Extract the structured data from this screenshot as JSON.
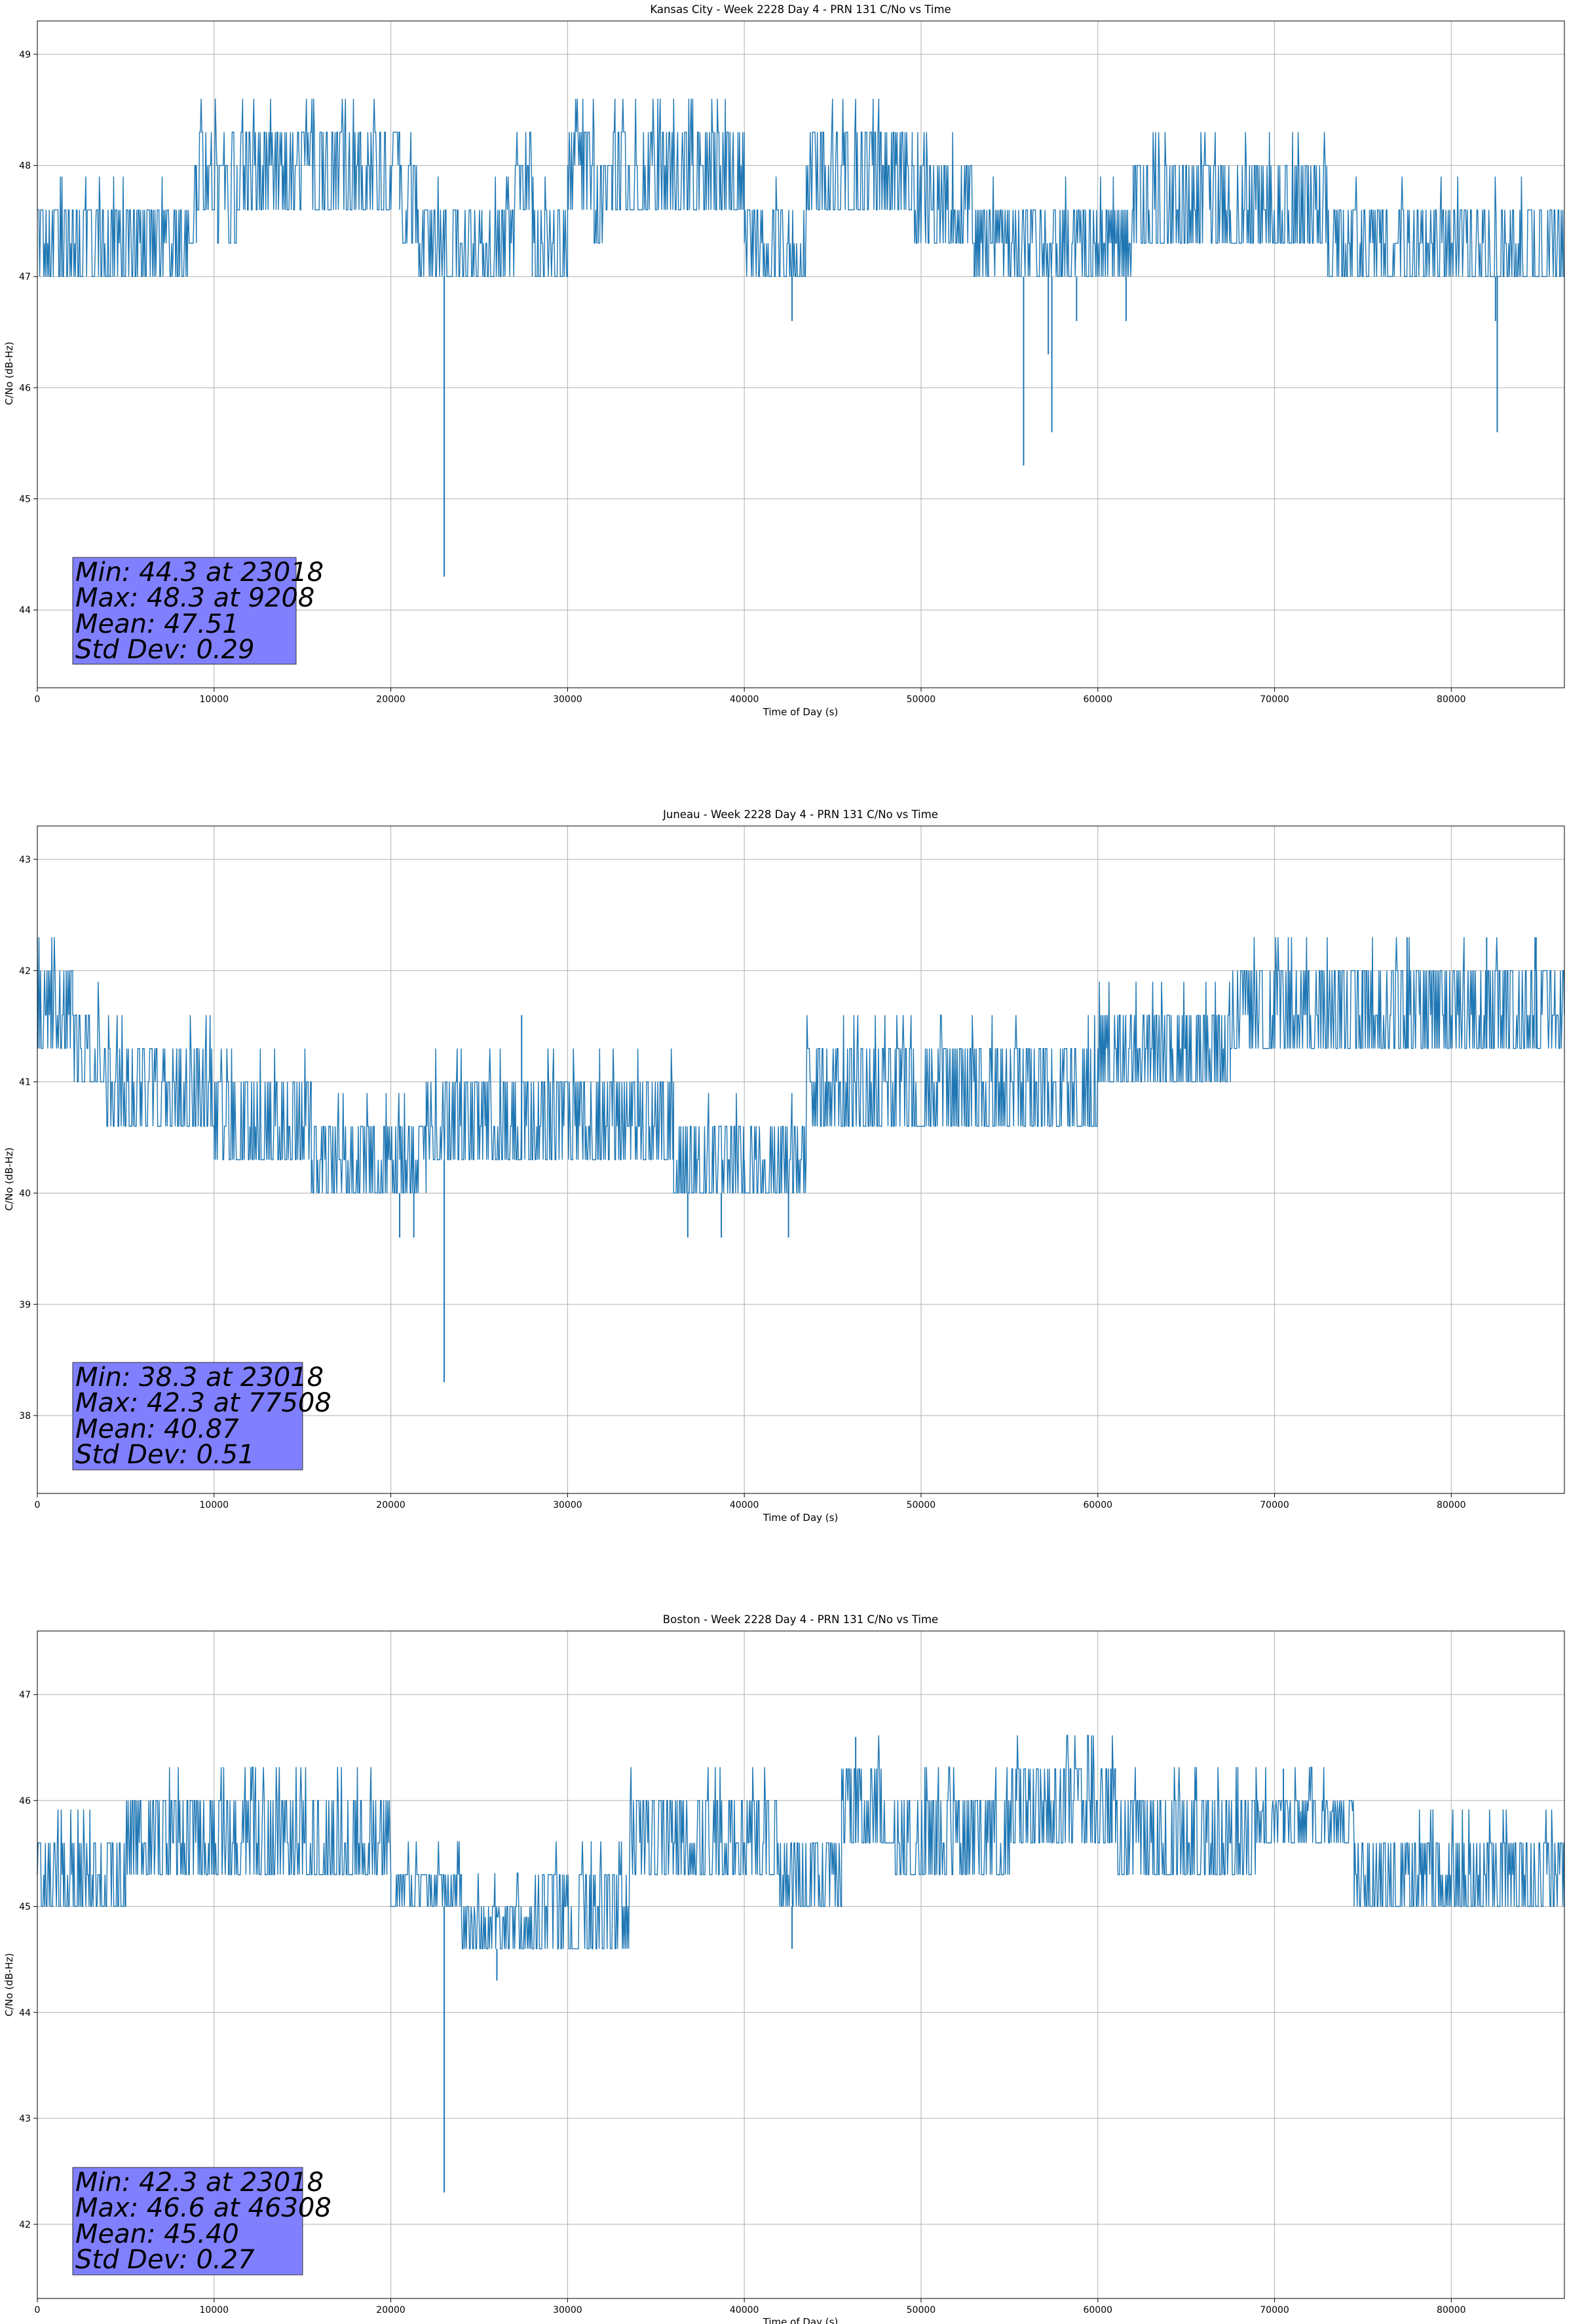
{
  "figure": {
    "background": "#ffffff",
    "line_color": "#1f77b4",
    "grid_color": "#b0b0b0",
    "stats_box_color": "#8080ff"
  },
  "chart_data": [
    {
      "type": "line",
      "title": "Kansas City - Week 2228 Day 4 - PRN 131 C/No vs Time",
      "xlabel": "Time of Day (s)",
      "ylabel": "C/No (dB-Hz)",
      "xlim": [
        0,
        86400
      ],
      "ylim": [
        43.3,
        49.3
      ],
      "xticks": [
        0,
        10000,
        20000,
        30000,
        40000,
        50000,
        60000,
        70000,
        80000
      ],
      "yticks": [
        44,
        45,
        46,
        47,
        48,
        49
      ],
      "grid": true,
      "stats": [
        "Min: 44.3 at 23018",
        "Max: 48.3 at 9208",
        "Mean: 47.51",
        "Std Dev: 0.29"
      ],
      "series": [
        {
          "segments": [
            [
              0,
              8500,
              47.0,
              47.3,
              47.6
            ],
            [
              8500,
              9000,
              47.3,
              47.6,
              48.0
            ],
            [
              9000,
              10200,
              47.6,
              48.0,
              48.3
            ],
            [
              10200,
              11300,
              47.3,
              47.6,
              48.0
            ],
            [
              11300,
              20500,
              47.6,
              48.0,
              48.3
            ],
            [
              20500,
              21500,
              47.3,
              47.6,
              48.0
            ],
            [
              21500,
              27000,
              47.0,
              47.3,
              47.6
            ],
            [
              27000,
              28000,
              47.6,
              48.0,
              48.0
            ],
            [
              28000,
              30000,
              47.0,
              47.3,
              47.6
            ],
            [
              30000,
              31500,
              47.6,
              48.0,
              48.3
            ],
            [
              31500,
              32500,
              47.3,
              47.6,
              48.0
            ],
            [
              32500,
              40000,
              47.6,
              48.0,
              48.3
            ],
            [
              40000,
              43500,
              47.0,
              47.3,
              47.6
            ],
            [
              43500,
              49500,
              47.6,
              48.0,
              48.3
            ],
            [
              49500,
              53000,
              47.3,
              47.6,
              48.0
            ],
            [
              53000,
              58000,
              47.0,
              47.3,
              47.6
            ],
            [
              58000,
              62000,
              47.0,
              47.3,
              47.6
            ],
            [
              62000,
              73000,
              47.3,
              47.6,
              48.0
            ],
            [
              73000,
              76000,
              47.0,
              47.3,
              47.6
            ],
            [
              76000,
              86400,
              47.0,
              47.3,
              47.6
            ]
          ],
          "spikes": [
            [
              23018,
              44.3
            ],
            [
              42700,
              46.6
            ],
            [
              55800,
              45.3
            ],
            [
              57200,
              46.3
            ],
            [
              57400,
              45.6
            ],
            [
              58800,
              46.6
            ],
            [
              61600,
              46.6
            ],
            [
              82500,
              46.6
            ],
            [
              82600,
              45.6
            ]
          ]
        }
      ]
    },
    {
      "type": "line",
      "title": "Juneau - Week 2228 Day 4 - PRN 131 C/No vs Time",
      "xlabel": "Time of Day (s)",
      "ylabel": "C/No (dB-Hz)",
      "xlim": [
        0,
        86400
      ],
      "ylim": [
        37.3,
        43.3
      ],
      "xticks": [
        0,
        10000,
        20000,
        30000,
        40000,
        50000,
        60000,
        70000,
        80000
      ],
      "yticks": [
        38,
        39,
        40,
        41,
        42,
        43
      ],
      "grid": true,
      "stats": [
        "Min: 38.3 at 23018",
        "Max: 42.3 at 77508",
        "Mean: 40.87",
        "Std Dev: 0.51"
      ],
      "series": [
        {
          "segments": [
            [
              0,
              2000,
              41.3,
              41.6,
              42.0
            ],
            [
              2000,
              3800,
              41.0,
              41.3,
              41.6
            ],
            [
              3800,
              10000,
              40.6,
              41.0,
              41.3
            ],
            [
              10000,
              15500,
              40.3,
              40.6,
              41.0
            ],
            [
              15500,
              20500,
              40.0,
              40.3,
              40.6
            ],
            [
              20500,
              22000,
              40.0,
              40.3,
              40.6
            ],
            [
              22000,
              36000,
              40.3,
              40.6,
              41.0
            ],
            [
              36000,
              40000,
              40.0,
              40.3,
              40.6
            ],
            [
              40000,
              43500,
              40.0,
              40.3,
              40.6
            ],
            [
              43500,
              60000,
              40.6,
              41.0,
              41.3
            ],
            [
              60000,
              65000,
              41.0,
              41.3,
              41.6
            ],
            [
              65000,
              67500,
              41.0,
              41.3,
              41.6
            ],
            [
              67500,
              75000,
              41.3,
              41.6,
              42.0
            ],
            [
              75000,
              86400,
              41.3,
              41.6,
              42.0
            ]
          ],
          "spikes": [
            [
              23018,
              38.3
            ],
            [
              20500,
              39.6
            ],
            [
              21300,
              39.6
            ],
            [
              27400,
              41.6
            ],
            [
              36800,
              39.6
            ],
            [
              38700,
              39.6
            ],
            [
              42500,
              39.6
            ],
            [
              77500,
              42.3
            ],
            [
              82000,
              42.3
            ],
            [
              84800,
              42.3
            ]
          ]
        }
      ]
    },
    {
      "type": "line",
      "title": "Boston - Week 2228 Day 4 - PRN 131 C/No vs Time",
      "xlabel": "Time of Day (s)",
      "ylabel": "C/No (dB-Hz)",
      "xlim": [
        0,
        86400
      ],
      "ylim": [
        41.3,
        47.6
      ],
      "xticks": [
        0,
        10000,
        20000,
        30000,
        40000,
        50000,
        60000,
        70000,
        80000
      ],
      "yticks": [
        42,
        43,
        44,
        45,
        46,
        47
      ],
      "grid": true,
      "stats": [
        "Min: 42.3 at 23018",
        "Max: 46.6 at 46308",
        "Mean: 45.40",
        "Std Dev: 0.27"
      ],
      "series": [
        {
          "segments": [
            [
              0,
              5000,
              45.0,
              45.3,
              45.6
            ],
            [
              5000,
              20000,
              45.3,
              45.6,
              46.0
            ],
            [
              20000,
              24000,
              45.0,
              45.3,
              45.3
            ],
            [
              24000,
              28000,
              44.6,
              44.9,
              45.0
            ],
            [
              28000,
              33500,
              44.6,
              45.0,
              45.3
            ],
            [
              33500,
              42000,
              45.3,
              45.6,
              46.0
            ],
            [
              42000,
              45500,
              45.0,
              45.3,
              45.6
            ],
            [
              45500,
              48500,
              45.6,
              46.0,
              46.3
            ],
            [
              48500,
              55000,
              45.3,
              45.6,
              46.0
            ],
            [
              55000,
              61000,
              45.6,
              46.0,
              46.3
            ],
            [
              61000,
              69000,
              45.3,
              45.6,
              46.0
            ],
            [
              69000,
              74500,
              45.6,
              45.9,
              46.0
            ],
            [
              74500,
              86400,
              45.0,
              45.3,
              45.6
            ]
          ],
          "spikes": [
            [
              23018,
              42.3
            ],
            [
              26000,
              44.3
            ],
            [
              42700,
              44.6
            ],
            [
              46300,
              46.6
            ],
            [
              60800,
              46.3
            ],
            [
              70500,
              46.3
            ]
          ]
        }
      ]
    }
  ]
}
